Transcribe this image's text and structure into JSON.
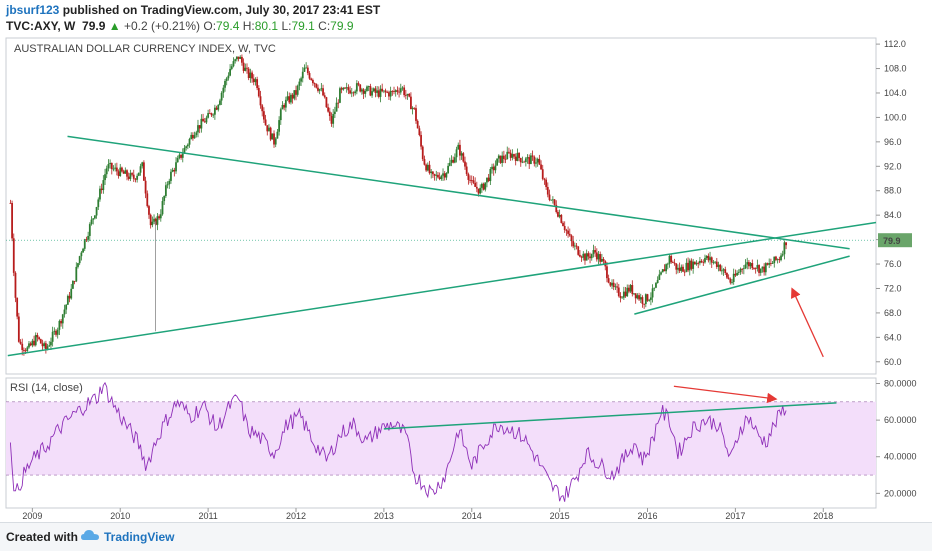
{
  "header": {
    "user": "jbsurf123",
    "published": "published on TradingView.com, July 30, 2017 23:41 EST",
    "symbol": "TVC:AXY, W",
    "last": "79.9",
    "change": "+0.2 (+0.21%)",
    "o_label": "O:",
    "o_value": "79.4",
    "h_label": "H:",
    "h_value": "80.1",
    "l_label": "L:",
    "l_value": "79.1",
    "c_label": "C:",
    "c_value": "79.9"
  },
  "footer": {
    "created_with": "Created with",
    "brand": "TradingView"
  },
  "colors": {
    "up": "#2e7d32",
    "down": "#b71c1c",
    "trend": "#1fa37a",
    "rsi": "#8e2fb8",
    "rsi_fill": "#f3defa",
    "arrow": "#e53935",
    "last_tag": "#6aa56a"
  },
  "chart_data": [
    {
      "type": "candlestick",
      "title": "AUSTRALIAN DOLLAR CURRENCY INDEX, W, TVC",
      "x_ticks": [
        "2009",
        "2010",
        "2011",
        "2012",
        "2013",
        "2014",
        "2015",
        "2016",
        "2017",
        "2018"
      ],
      "y_ticks": [
        "112.0",
        "108.0",
        "104.0",
        "100.0",
        "96.0",
        "92.0",
        "88.0",
        "84.0",
        "80.0",
        "76.0",
        "72.0",
        "68.0",
        "64.0",
        "60.0"
      ],
      "ylim": [
        58,
        113
      ],
      "xlim": [
        2008.7,
        2018.6
      ],
      "last_price_label": "79.9",
      "price_path": [
        [
          2008.75,
          86
        ],
        [
          2008.8,
          72
        ],
        [
          2008.85,
          63
        ],
        [
          2008.95,
          62
        ],
        [
          2009.05,
          64
        ],
        [
          2009.15,
          62
        ],
        [
          2009.3,
          66
        ],
        [
          2009.45,
          72
        ],
        [
          2009.55,
          78
        ],
        [
          2009.7,
          84
        ],
        [
          2009.85,
          92
        ],
        [
          2010.0,
          91
        ],
        [
          2010.15,
          90
        ],
        [
          2010.25,
          92
        ],
        [
          2010.35,
          82
        ],
        [
          2010.45,
          84
        ],
        [
          2010.55,
          90
        ],
        [
          2010.7,
          94
        ],
        [
          2010.85,
          98
        ],
        [
          2011.0,
          100
        ],
        [
          2011.1,
          102
        ],
        [
          2011.25,
          108
        ],
        [
          2011.35,
          110
        ],
        [
          2011.45,
          107
        ],
        [
          2011.55,
          106
        ],
        [
          2011.65,
          99
        ],
        [
          2011.75,
          96
        ],
        [
          2011.85,
          102
        ],
        [
          2012.0,
          104
        ],
        [
          2012.1,
          108
        ],
        [
          2012.3,
          104
        ],
        [
          2012.4,
          99
        ],
        [
          2012.5,
          104
        ],
        [
          2012.7,
          105
        ],
        [
          2012.9,
          104
        ],
        [
          2013.1,
          104
        ],
        [
          2013.2,
          105
        ],
        [
          2013.35,
          101
        ],
        [
          2013.45,
          93
        ],
        [
          2013.55,
          90
        ],
        [
          2013.7,
          91
        ],
        [
          2013.85,
          95
        ],
        [
          2014.0,
          89
        ],
        [
          2014.1,
          88
        ],
        [
          2014.3,
          93
        ],
        [
          2014.45,
          94
        ],
        [
          2014.6,
          93
        ],
        [
          2014.75,
          93
        ],
        [
          2014.85,
          88
        ],
        [
          2015.0,
          84
        ],
        [
          2015.15,
          79
        ],
        [
          2015.3,
          77
        ],
        [
          2015.4,
          78
        ],
        [
          2015.5,
          76
        ],
        [
          2015.6,
          72
        ],
        [
          2015.7,
          71
        ],
        [
          2015.8,
          72
        ],
        [
          2015.95,
          70
        ],
        [
          2016.05,
          71
        ],
        [
          2016.15,
          74
        ],
        [
          2016.25,
          77
        ],
        [
          2016.35,
          75
        ],
        [
          2016.5,
          76
        ],
        [
          2016.65,
          77
        ],
        [
          2016.8,
          76
        ],
        [
          2016.95,
          73
        ],
        [
          2017.1,
          76
        ],
        [
          2017.2,
          76
        ],
        [
          2017.3,
          75
        ],
        [
          2017.4,
          76
        ],
        [
          2017.5,
          77
        ],
        [
          2017.58,
          79.9
        ]
      ],
      "trend_lines": [
        {
          "x1": 2009.4,
          "y1": 96.9,
          "x2": 2018.3,
          "y2": 78.5
        },
        {
          "x1": 2008.72,
          "y1": 61.0,
          "x2": 2018.6,
          "y2": 82.8
        },
        {
          "x1": 2015.85,
          "y1": 67.8,
          "x2": 2018.3,
          "y2": 77.3
        }
      ],
      "arrow": {
        "x1": 2018.0,
        "y1": 60.8,
        "x2": 2017.65,
        "y2": 71.8
      }
    },
    {
      "type": "line",
      "title": "RSI (14, close)",
      "y_ticks": [
        "80.0000",
        "60.0000",
        "40.0000",
        "20.0000"
      ],
      "ylim": [
        12,
        83
      ],
      "bands": {
        "upper": 70,
        "lower": 30
      },
      "rsi_path": [
        [
          2008.75,
          50
        ],
        [
          2008.8,
          18
        ],
        [
          2008.9,
          30
        ],
        [
          2009.0,
          38
        ],
        [
          2009.15,
          45
        ],
        [
          2009.3,
          55
        ],
        [
          2009.45,
          62
        ],
        [
          2009.6,
          68
        ],
        [
          2009.75,
          73
        ],
        [
          2009.8,
          80
        ],
        [
          2009.95,
          66
        ],
        [
          2010.1,
          55
        ],
        [
          2010.2,
          48
        ],
        [
          2010.3,
          35
        ],
        [
          2010.4,
          48
        ],
        [
          2010.5,
          58
        ],
        [
          2010.65,
          70
        ],
        [
          2010.8,
          62
        ],
        [
          2010.95,
          68
        ],
        [
          2011.1,
          55
        ],
        [
          2011.25,
          68
        ],
        [
          2011.35,
          72
        ],
        [
          2011.45,
          55
        ],
        [
          2011.6,
          50
        ],
        [
          2011.75,
          42
        ],
        [
          2011.9,
          58
        ],
        [
          2012.05,
          62
        ],
        [
          2012.2,
          48
        ],
        [
          2012.35,
          38
        ],
        [
          2012.5,
          52
        ],
        [
          2012.65,
          58
        ],
        [
          2012.8,
          48
        ],
        [
          2012.95,
          55
        ],
        [
          2013.1,
          58
        ],
        [
          2013.25,
          52
        ],
        [
          2013.35,
          30
        ],
        [
          2013.45,
          25
        ],
        [
          2013.55,
          20
        ],
        [
          2013.7,
          30
        ],
        [
          2013.85,
          55
        ],
        [
          2014.0,
          35
        ],
        [
          2014.15,
          48
        ],
        [
          2014.3,
          58
        ],
        [
          2014.45,
          55
        ],
        [
          2014.6,
          50
        ],
        [
          2014.75,
          38
        ],
        [
          2014.9,
          24
        ],
        [
          2015.05,
          18
        ],
        [
          2015.2,
          30
        ],
        [
          2015.3,
          42
        ],
        [
          2015.45,
          36
        ],
        [
          2015.6,
          30
        ],
        [
          2015.75,
          40
        ],
        [
          2015.85,
          48
        ],
        [
          2015.95,
          38
        ],
        [
          2016.05,
          48
        ],
        [
          2016.15,
          65
        ],
        [
          2016.25,
          60
        ],
        [
          2016.35,
          42
        ],
        [
          2016.5,
          55
        ],
        [
          2016.65,
          60
        ],
        [
          2016.8,
          58
        ],
        [
          2016.95,
          38
        ],
        [
          2017.05,
          55
        ],
        [
          2017.15,
          62
        ],
        [
          2017.25,
          52
        ],
        [
          2017.35,
          48
        ],
        [
          2017.45,
          58
        ],
        [
          2017.52,
          64
        ],
        [
          2017.58,
          68
        ]
      ],
      "trend_line": {
        "x1": 2013.0,
        "y1": 55.2,
        "x2": 2018.15,
        "y2": 69.4
      },
      "arrow": {
        "x1": 2016.3,
        "y1": 78.5,
        "x2": 2017.45,
        "y2": 71.6
      }
    }
  ]
}
